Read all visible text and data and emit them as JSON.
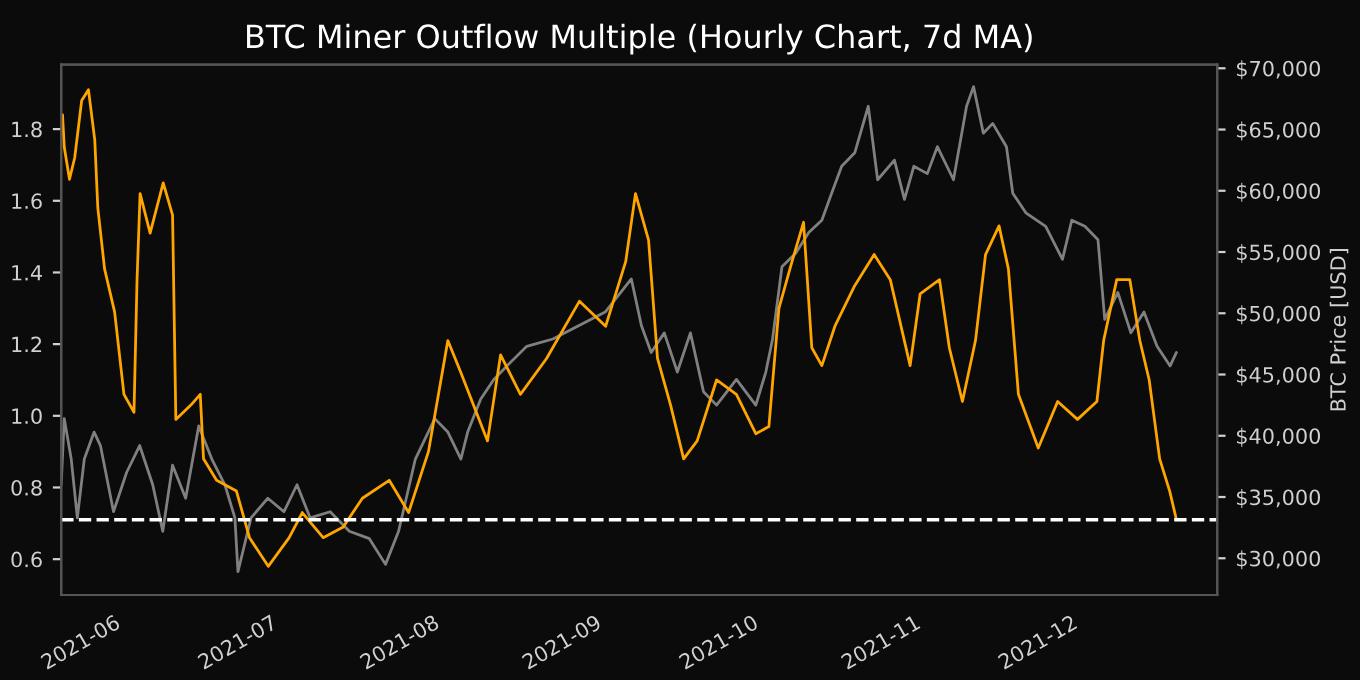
{
  "chart_data": {
    "type": "line",
    "title": "BTC Miner Outflow Multiple (Hourly Chart, 7d MA)",
    "y2label": "BTC Price [USD]",
    "xlim": [
      "2021-05-20",
      "2021-12-27"
    ],
    "xticks": [
      {
        "value": "2021-06-01",
        "label": "2021-06"
      },
      {
        "value": "2021-07-01",
        "label": "2021-07"
      },
      {
        "value": "2021-08-01",
        "label": "2021-08"
      },
      {
        "value": "2021-09-01",
        "label": "2021-09"
      },
      {
        "value": "2021-10-01",
        "label": "2021-10"
      },
      {
        "value": "2021-11-01",
        "label": "2021-11"
      },
      {
        "value": "2021-12-01",
        "label": "2021-12"
      }
    ],
    "ylim": [
      0.5,
      1.98
    ],
    "yticks": [
      0.6,
      0.8,
      {
        "value": 1.0,
        "label": "1.0"
      },
      1.2,
      1.4,
      1.6,
      1.8
    ],
    "y2lim": [
      27000,
      70300
    ],
    "y2ticks": [
      {
        "value": 30000,
        "label": "$30,000"
      },
      {
        "value": 35000,
        "label": "$35,000"
      },
      {
        "value": 40000,
        "label": "$40,000"
      },
      {
        "value": 45000,
        "label": "$45,000"
      },
      {
        "value": 50000,
        "label": "$50,000"
      },
      {
        "value": 55000,
        "label": "$55,000"
      },
      {
        "value": 60000,
        "label": "$60,000"
      },
      {
        "value": 65000,
        "label": "$65,000"
      },
      {
        "value": 70000,
        "label": "$70,000"
      }
    ],
    "grid": false,
    "legend": false,
    "ref_lines": [
      {
        "axis": "y",
        "value": 0.71,
        "color": "#ffffff",
        "line_style": "dashed"
      }
    ],
    "series": [
      {
        "color": "#808080",
        "axis": "y2",
        "x": [
          "2021-05-20",
          "2021-05-20T14:00",
          "2021-05-21T22:00",
          "2021-05-23T02:00",
          "2021-05-24T10:00",
          "2021-05-26T07:00",
          "2021-05-27T12:00",
          "2021-05-30",
          "2021-06-01T12:00",
          "2021-06-04",
          "2021-06-06T12:00",
          "2021-06-08T10:00",
          "2021-06-10T07:00",
          "2021-06-12T19:00",
          "2021-06-15T07:00",
          "2021-06-17T19:00",
          "2021-06-20T07:00",
          "2021-06-22T05:00",
          "2021-06-22T19:00",
          "2021-06-25T07:00",
          "2021-06-28T12:00",
          "2021-07-01T14:00",
          "2021-07-04T02:00",
          "2021-07-06T14:00",
          "2021-07-10T10:00",
          "2021-07-14T02:00",
          "2021-07-17T22:00",
          "2021-07-21",
          "2021-07-23T12:00",
          "2021-07-26T17:00",
          "2021-07-30T10:00",
          "2021-08-01T22:00",
          "2021-08-04T10:00",
          "2021-08-05T17:00",
          "2021-08-08T05:00",
          "2021-08-10T17:00",
          "2021-08-13T05:00",
          "2021-08-17",
          "2021-08-22",
          "2021-08-27",
          "2021-09-01",
          "2021-09-06",
          "2021-09-07T22:00",
          "2021-09-09T19:00",
          "2021-09-12T07:00",
          "2021-09-14T19:00",
          "2021-09-17T07:00",
          "2021-09-19T19:00",
          "2021-09-22T07:00",
          "2021-09-26T02:00",
          "2021-09-29T19:00",
          "2021-10-01T17:00",
          "2021-10-03",
          "2021-10-04T19:00",
          "2021-10-07T10:00",
          "2021-10-09T22:00",
          "2021-10-12T10:00",
          "2021-10-14T07:00",
          "2021-10-16T05:00",
          "2021-10-18T17:00",
          "2021-10-21T07:00",
          "2021-10-23T02:00",
          "2021-10-26T07:00",
          "2021-10-28T05:00",
          "2021-10-30",
          "2021-11-01T14:00",
          "2021-11-03T12:00",
          "2021-11-06T14:00",
          "2021-11-09T02:00",
          "2021-11-10T10:00",
          "2021-11-12T07:00",
          "2021-11-14T02:00",
          "2021-11-16T17:00",
          "2021-11-17T22:00",
          "2021-11-20T10:00",
          "2021-11-24T05:00",
          "2021-11-27T10:00",
          "2021-11-29T05:00",
          "2021-12-01T17:00",
          "2021-12-04T05:00",
          "2021-12-05T12:00",
          "2021-12-08",
          "2021-12-10T12:00",
          "2021-12-13",
          "2021-12-15T12:00",
          "2021-12-18",
          "2021-12-19T05:00"
        ],
        "values": [
          36000,
          41400,
          38100,
          33300,
          38100,
          40300,
          39200,
          33800,
          37000,
          39200,
          36000,
          32200,
          37600,
          34900,
          40800,
          38100,
          36000,
          33300,
          28900,
          33300,
          34900,
          33800,
          36000,
          33300,
          33800,
          32200,
          31600,
          29500,
          32200,
          38100,
          41400,
          40300,
          38100,
          40300,
          43000,
          44600,
          45700,
          47300,
          47900,
          49000,
          50100,
          52800,
          49000,
          46800,
          48400,
          45200,
          48400,
          43600,
          42500,
          44600,
          42500,
          45200,
          47900,
          53800,
          54900,
          56600,
          57600,
          59800,
          62000,
          63100,
          66900,
          60900,
          62500,
          59300,
          62000,
          61400,
          63600,
          60900,
          66900,
          68500,
          64700,
          65500,
          63600,
          59800,
          58200,
          57100,
          54400,
          57600,
          57100,
          56000,
          49500,
          51700,
          48400,
          50100,
          47300,
          45700,
          46800
        ]
      },
      {
        "color": "#ffa500",
        "x": [
          "2021-05-20T06:00",
          "2021-05-20T14:00",
          "2021-05-21T14:00",
          "2021-05-22T14:00",
          "2021-05-23T22:00",
          "2021-05-25T05:00",
          "2021-05-26T10:00",
          "2021-05-27",
          "2021-05-28T07:00",
          "2021-05-30T05:00",
          "2021-06-01",
          "2021-06-02T22:00",
          "2021-06-03T12:00",
          "2021-06-04T02:00",
          "2021-06-06",
          "2021-06-08T12:00",
          "2021-06-10T07:00",
          "2021-06-10T22:00",
          "2021-06-13T19:00",
          "2021-06-15T14:00",
          "2021-06-16T05:00",
          "2021-06-18T17:00",
          "2021-06-22T12:00",
          "2021-06-25",
          "2021-06-28T14:00",
          "2021-07-02T14:00",
          "2021-07-05T02:00",
          "2021-07-09T02:00",
          "2021-07-12T22:00",
          "2021-07-16T14:00",
          "2021-07-21T17:00",
          "2021-07-25T10:00",
          "2021-07-29T05:00",
          "2021-08-01T22:00",
          "2021-08-04T10:00",
          "2021-08-09T12:00",
          "2021-08-12",
          "2021-08-15T19:00",
          "2021-08-20T19:00",
          "2021-08-27T02:00",
          "2021-09-01T02:00",
          "2021-09-04T22:00",
          "2021-09-06T19:00",
          "2021-09-09T07:00",
          "2021-09-11",
          "2021-09-13T12:00",
          "2021-09-16",
          "2021-09-18T14:00",
          "2021-09-22T07:00",
          "2021-09-26T02:00",
          "2021-09-29T19:00",
          "2021-10-02T07:00",
          "2021-10-04T05:00",
          "2021-10-06T17:00",
          "2021-10-08T22:00",
          "2021-10-10T12:00",
          "2021-10-12T10:00",
          "2021-10-14T22:00",
          "2021-10-18T14:00",
          "2021-10-22T10:00",
          "2021-10-25T12:00",
          "2021-10-29T07:00",
          "2021-10-31T05:00",
          "2021-11-03T22:00",
          "2021-11-05T19:00",
          "2021-11-08T07:00",
          "2021-11-10T19:00",
          "2021-11-12T17:00",
          "2021-11-15T07:00",
          "2021-11-17T02:00",
          "2021-11-19",
          "2021-11-22T19:00",
          "2021-11-26T12:00",
          "2021-11-30T07:00",
          "2021-12-04",
          "2021-12-05T07:00",
          "2021-12-07T19:00",
          "2021-12-10T07:00",
          "2021-12-12T05:00",
          "2021-12-14",
          "2021-12-16",
          "2021-12-17T22:00",
          "2021-12-19T05:00"
        ],
        "values": [
          1.84,
          1.75,
          1.66,
          1.72,
          1.88,
          1.91,
          1.77,
          1.58,
          1.41,
          1.29,
          1.06,
          1.01,
          1.38,
          1.62,
          1.51,
          1.65,
          1.56,
          0.99,
          1.03,
          1.06,
          0.88,
          0.82,
          0.79,
          0.66,
          0.58,
          0.66,
          0.73,
          0.66,
          0.69,
          0.77,
          0.82,
          0.73,
          0.9,
          1.21,
          1.12,
          0.93,
          1.17,
          1.06,
          1.16,
          1.32,
          1.25,
          1.43,
          1.62,
          1.49,
          1.16,
          1.03,
          0.88,
          0.93,
          1.1,
          1.06,
          0.95,
          0.97,
          1.3,
          1.43,
          1.54,
          1.19,
          1.14,
          1.25,
          1.36,
          1.45,
          1.38,
          1.14,
          1.34,
          1.38,
          1.19,
          1.04,
          1.21,
          1.45,
          1.53,
          1.41,
          1.06,
          0.91,
          1.04,
          0.99,
          1.04,
          1.21,
          1.38,
          1.38,
          1.21,
          1.1,
          0.88,
          0.79,
          0.71
        ]
      }
    ]
  }
}
